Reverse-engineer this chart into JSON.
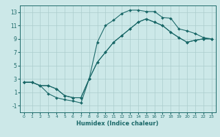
{
  "xlabel": "Humidex (Indice chaleur)",
  "bg_color": "#cce8e8",
  "line_color": "#1a6868",
  "grid_color": "#aacccc",
  "xlim": [
    -0.5,
    23.5
  ],
  "ylim": [
    -2.0,
    14.0
  ],
  "xticks": [
    0,
    1,
    2,
    3,
    4,
    5,
    6,
    7,
    8,
    9,
    10,
    11,
    12,
    13,
    14,
    15,
    16,
    17,
    18,
    19,
    20,
    21,
    22,
    23
  ],
  "yticks": [
    -1,
    1,
    3,
    5,
    7,
    9,
    11,
    13
  ],
  "line1_x": [
    0,
    1,
    2,
    3,
    4,
    5,
    6,
    7,
    8,
    9,
    10,
    11,
    12,
    13,
    14,
    15,
    16,
    17,
    18,
    19,
    20,
    21,
    22,
    23
  ],
  "line1_y": [
    2.5,
    2.5,
    2.0,
    2.0,
    1.5,
    0.5,
    0.2,
    0.2,
    3.0,
    5.5,
    7.0,
    8.5,
    9.5,
    10.5,
    11.5,
    12.0,
    11.5,
    11.0,
    10.0,
    9.2,
    8.5,
    8.8,
    9.0,
    9.0
  ],
  "line2_x": [
    0,
    1,
    2,
    3,
    4,
    5,
    6,
    7,
    8,
    9,
    10,
    11,
    12,
    13,
    14,
    15,
    16,
    17,
    18,
    19,
    20,
    21,
    22,
    23
  ],
  "line2_y": [
    2.5,
    2.5,
    2.0,
    0.8,
    0.2,
    -0.1,
    -0.3,
    -0.6,
    3.0,
    8.5,
    11.0,
    11.8,
    12.8,
    13.3,
    13.3,
    13.1,
    13.1,
    12.2,
    12.1,
    10.5,
    10.2,
    9.8,
    9.2,
    9.0
  ],
  "line3_x": [
    0,
    1,
    2,
    3,
    4,
    5,
    6,
    7,
    8,
    9,
    10,
    11,
    12,
    13,
    14,
    15,
    16,
    17,
    18,
    19,
    20,
    21,
    22,
    23
  ],
  "line3_y": [
    2.5,
    2.5,
    2.0,
    2.0,
    1.5,
    0.5,
    0.2,
    0.2,
    3.0,
    5.5,
    7.0,
    8.5,
    9.5,
    10.5,
    11.5,
    12.0,
    11.5,
    11.0,
    10.0,
    9.2,
    8.5,
    8.8,
    9.0,
    9.0
  ],
  "xlabel_fontsize": 6,
  "tick_fontsize_x": 4.5,
  "tick_fontsize_y": 5.5,
  "linewidth": 0.8,
  "markersize": 2.0
}
